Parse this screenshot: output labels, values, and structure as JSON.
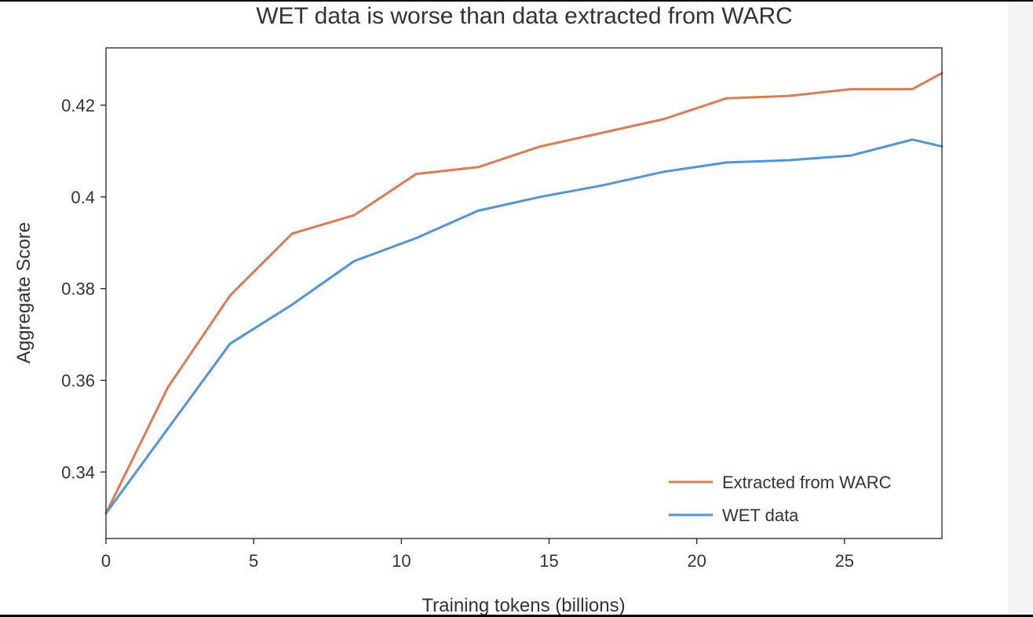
{
  "chart_data": {
    "type": "line",
    "title": "WET data is worse than data extracted from WARC",
    "xlabel": "Training tokens (billions)",
    "ylabel": "Aggregate Score",
    "xlim": [
      0,
      28.3
    ],
    "ylim": [
      0.3255,
      0.4325
    ],
    "x_ticks": [
      0,
      5,
      10,
      15,
      20,
      25
    ],
    "x_tick_labels": [
      "0",
      "5",
      "10",
      "15",
      "20",
      "25"
    ],
    "y_ticks": [
      0.34,
      0.36,
      0.38,
      0.4,
      0.42
    ],
    "y_tick_labels": [
      "0.34",
      "0.36",
      "0.38",
      "0.4",
      "0.42"
    ],
    "grid": false,
    "legend_position": "bottom-right",
    "series": [
      {
        "name": "Extracted from WARC",
        "color": "#e07a50",
        "x": [
          0,
          2.1,
          4.2,
          6.3,
          8.4,
          10.5,
          12.6,
          14.7,
          16.8,
          18.9,
          21.0,
          23.1,
          25.2,
          27.3,
          28.3
        ],
        "y": [
          0.331,
          0.3585,
          0.3785,
          0.392,
          0.396,
          0.405,
          0.4065,
          0.411,
          0.414,
          0.417,
          0.4215,
          0.422,
          0.4235,
          0.4235,
          0.427
        ]
      },
      {
        "name": "WET data",
        "color": "#4f94e0",
        "x": [
          0,
          2.1,
          4.2,
          6.3,
          8.4,
          10.5,
          12.6,
          14.7,
          16.8,
          18.9,
          21.0,
          23.1,
          25.2,
          27.3,
          28.3
        ],
        "y": [
          0.331,
          0.3495,
          0.368,
          0.3765,
          0.386,
          0.391,
          0.397,
          0.4,
          0.4025,
          0.4055,
          0.4075,
          0.408,
          0.409,
          0.4125,
          0.411
        ]
      }
    ]
  }
}
